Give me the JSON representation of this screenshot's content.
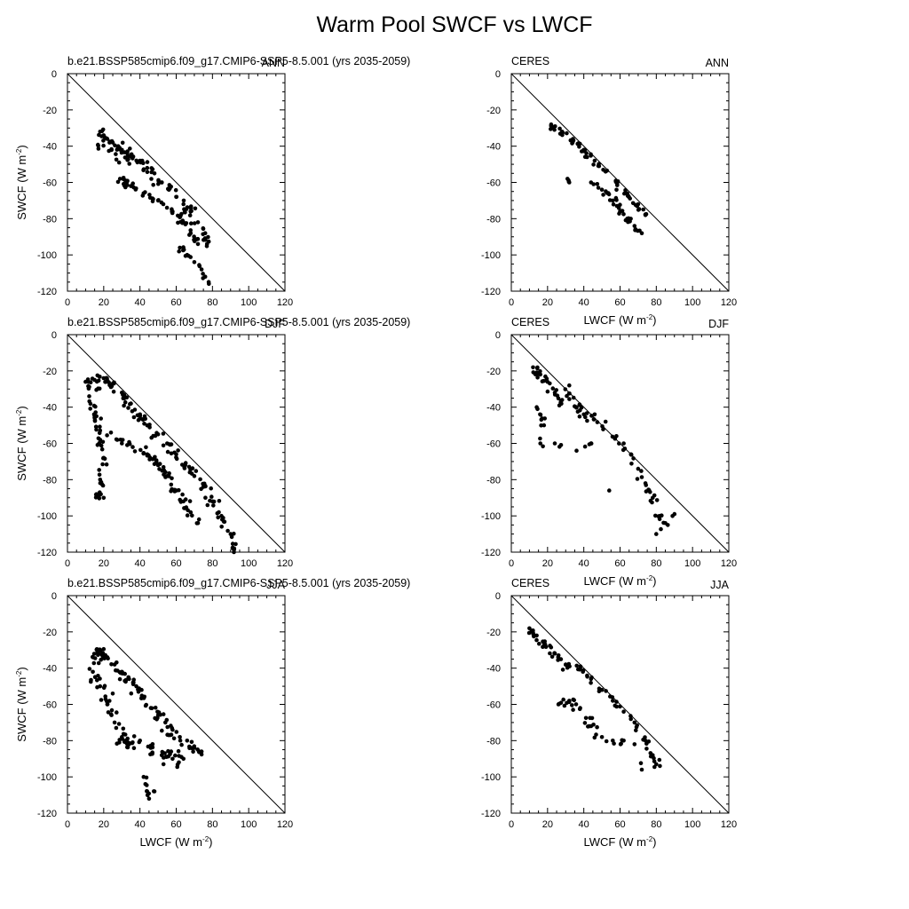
{
  "title": "Warm Pool SWCF vs LWCF",
  "axes": {
    "xlabel_main": "LWCF (W m",
    "xlabel_sup": "-2",
    "xlabel_close": ")",
    "ylabel_main": "SWCF (W m",
    "ylabel_sup": "-2",
    "ylabel_close": ")",
    "xlim": [
      0,
      120
    ],
    "ylim": [
      -120,
      0
    ],
    "xticks": [
      0,
      20,
      40,
      60,
      80,
      100,
      120
    ],
    "yticks": [
      0,
      -20,
      -40,
      -60,
      -80,
      -100,
      -120
    ]
  },
  "chart_data": [
    {
      "type": "scatter",
      "panel": "model-ann",
      "left_label": "b.e21.BSSP585cmip6.f09_g17.CMIP6-SSP5-8.5.001 (yrs 2035-2059)",
      "right_label": "ANN",
      "xlabel": "",
      "ylabel": "SWCF (W m-2)",
      "xlim": [
        0,
        120
      ],
      "ylim": [
        -120,
        0
      ],
      "reference_line": "1:-1",
      "clusters": [
        {
          "pts": [
            [
              18,
              -32
            ],
            [
              20,
              -34
            ],
            [
              22,
              -36
            ],
            [
              25,
              -38
            ],
            [
              28,
              -40
            ],
            [
              30,
              -42
            ],
            [
              33,
              -44
            ],
            [
              36,
              -46
            ],
            [
              40,
              -48
            ],
            [
              44,
              -52
            ],
            [
              48,
              -55
            ],
            [
              52,
              -60
            ],
            [
              56,
              -64
            ],
            [
              60,
              -68
            ],
            [
              64,
              -72
            ],
            [
              68,
              -76
            ],
            [
              72,
              -82
            ],
            [
              76,
              -88
            ],
            [
              77,
              -94
            ]
          ],
          "n": 90,
          "spread": 4.5,
          "offset": -6
        },
        {
          "pts": [
            [
              29,
              -58
            ],
            [
              35,
              -62
            ],
            [
              42,
              -66
            ],
            [
              50,
              -70
            ],
            [
              58,
              -76
            ],
            [
              64,
              -82
            ],
            [
              68,
              -88
            ],
            [
              72,
              -94
            ]
          ],
          "n": 45,
          "spread": 3.5,
          "offset": 0
        },
        {
          "pts": [
            [
              62,
              -96
            ],
            [
              66,
              -100
            ],
            [
              70,
              -104
            ],
            [
              74,
              -108
            ],
            [
              76,
              -112
            ],
            [
              78,
              -116
            ]
          ],
          "n": 12,
          "spread": 2.5,
          "offset": 0
        }
      ]
    },
    {
      "type": "scatter",
      "panel": "obs-ann",
      "left_label": "CERES",
      "right_label": "ANN",
      "xlabel": "LWCF (W m-2)",
      "ylabel": "",
      "xlim": [
        0,
        120
      ],
      "ylim": [
        -120,
        0
      ],
      "reference_line": "1:-1",
      "clusters": [
        {
          "pts": [
            [
              22,
              -28
            ],
            [
              28,
              -32
            ],
            [
              34,
              -36
            ],
            [
              40,
              -42
            ],
            [
              46,
              -48
            ],
            [
              52,
              -54
            ],
            [
              58,
              -60
            ],
            [
              64,
              -66
            ],
            [
              70,
              -72
            ],
            [
              74,
              -78
            ]
          ],
          "n": 55,
          "spread": 3.2,
          "offset": -2
        },
        {
          "pts": [
            [
              44,
              -60
            ],
            [
              50,
              -64
            ],
            [
              56,
              -70
            ],
            [
              60,
              -76
            ],
            [
              64,
              -80
            ],
            [
              68,
              -84
            ],
            [
              72,
              -88
            ]
          ],
          "n": 30,
          "spread": 3.5,
          "offset": 0
        },
        {
          "pts": [
            [
              31,
              -58
            ],
            [
              32,
              -60
            ]
          ],
          "n": 2,
          "spread": 0.8,
          "offset": 0
        }
      ]
    },
    {
      "type": "scatter",
      "panel": "model-djf",
      "left_label": "b.e21.BSSP585cmip6.f09_g17.CMIP6-SSP5-8.5.001 (yrs 2035-2059)",
      "right_label": "DJF",
      "xlabel": "",
      "ylabel": "SWCF (W m-2)",
      "xlim": [
        0,
        120
      ],
      "ylim": [
        -120,
        0
      ],
      "reference_line": "1:-1",
      "clusters": [
        {
          "pts": [
            [
              10,
              -26
            ],
            [
              15,
              -25
            ],
            [
              20,
              -24
            ],
            [
              25,
              -27
            ],
            [
              30,
              -32
            ],
            [
              35,
              -38
            ],
            [
              40,
              -44
            ],
            [
              45,
              -50
            ],
            [
              50,
              -55
            ],
            [
              55,
              -60
            ],
            [
              60,
              -66
            ],
            [
              65,
              -72
            ],
            [
              70,
              -78
            ],
            [
              75,
              -84
            ],
            [
              80,
              -92
            ],
            [
              85,
              -100
            ],
            [
              90,
              -110
            ],
            [
              92,
              -118
            ]
          ],
          "n": 110,
          "spread": 4,
          "offset": -5
        },
        {
          "pts": [
            [
              12,
              -34
            ],
            [
              16,
              -45
            ],
            [
              18,
              -58
            ],
            [
              20,
              -68
            ],
            [
              18,
              -80
            ],
            [
              16,
              -88
            ],
            [
              20,
              -90
            ]
          ],
          "n": 40,
          "spread": 3.5,
          "offset": 0
        },
        {
          "pts": [
            [
              24,
              -54
            ],
            [
              30,
              -60
            ],
            [
              36,
              -62
            ],
            [
              44,
              -66
            ],
            [
              50,
              -72
            ],
            [
              55,
              -78
            ],
            [
              60,
              -86
            ],
            [
              64,
              -92
            ],
            [
              68,
              -98
            ],
            [
              72,
              -104
            ]
          ],
          "n": 55,
          "spread": 4,
          "offset": 0
        }
      ]
    },
    {
      "type": "scatter",
      "panel": "obs-djf",
      "left_label": "CERES",
      "right_label": "DJF",
      "xlabel": "LWCF (W m-2)",
      "ylabel": "",
      "xlim": [
        0,
        120
      ],
      "ylim": [
        -120,
        0
      ],
      "reference_line": "1:-1",
      "clusters": [
        {
          "pts": [
            [
              12,
              -18
            ],
            [
              16,
              -22
            ],
            [
              20,
              -26
            ],
            [
              24,
              -32
            ],
            [
              28,
              -36
            ],
            [
              32,
              -28
            ],
            [
              36,
              -40
            ],
            [
              40,
              -44
            ],
            [
              46,
              -44
            ],
            [
              52,
              -48
            ],
            [
              58,
              -56
            ],
            [
              62,
              -60
            ],
            [
              66,
              -66
            ],
            [
              70,
              -74
            ],
            [
              74,
              -82
            ],
            [
              78,
              -90
            ],
            [
              82,
              -100
            ],
            [
              85,
              -104
            ]
          ],
          "n": 75,
          "spread": 3.5,
          "offset": -3
        },
        {
          "pts": [
            [
              14,
              -40
            ],
            [
              18,
              -50
            ],
            [
              16,
              -60
            ],
            [
              24,
              -60
            ],
            [
              36,
              -64
            ],
            [
              44,
              -60
            ],
            [
              54,
              -86
            ]
          ],
          "n": 14,
          "spread": 3,
          "offset": 0
        },
        {
          "pts": [
            [
              80,
              -110
            ],
            [
              90,
              -99
            ]
          ],
          "n": 2,
          "spread": 0.8,
          "offset": 0
        }
      ]
    },
    {
      "type": "scatter",
      "panel": "model-jja",
      "left_label": "b.e21.BSSP585cmip6.f09_g17.CMIP6-SSP5-8.5.001 (yrs 2035-2059)",
      "right_label": "JJA",
      "xlabel": "LWCF (W m-2)",
      "ylabel": "SWCF (W m-2)",
      "xlim": [
        0,
        120
      ],
      "ylim": [
        -120,
        0
      ],
      "reference_line": "1:-1",
      "clusters": [
        {
          "pts": [
            [
              14,
              -34
            ],
            [
              18,
              -30
            ],
            [
              22,
              -34
            ],
            [
              26,
              -38
            ],
            [
              30,
              -42
            ],
            [
              34,
              -46
            ],
            [
              38,
              -50
            ],
            [
              42,
              -56
            ],
            [
              46,
              -62
            ],
            [
              50,
              -66
            ],
            [
              54,
              -70
            ],
            [
              58,
              -74
            ],
            [
              62,
              -78
            ],
            [
              66,
              -80
            ],
            [
              70,
              -84
            ],
            [
              74,
              -86
            ]
          ],
          "n": 85,
          "spread": 4,
          "offset": -4
        },
        {
          "pts": [
            [
              14,
              -42
            ],
            [
              18,
              -50
            ],
            [
              22,
              -60
            ],
            [
              26,
              -70
            ],
            [
              30,
              -78
            ],
            [
              34,
              -82
            ],
            [
              40,
              -80
            ],
            [
              46,
              -84
            ],
            [
              52,
              -88
            ],
            [
              58,
              -90
            ],
            [
              64,
              -90
            ]
          ],
          "n": 70,
          "spread": 6,
          "offset": 0
        },
        {
          "pts": [
            [
              43,
              -104
            ],
            [
              44,
              -108
            ],
            [
              45,
              -112
            ],
            [
              48,
              -108
            ],
            [
              42,
              -100
            ]
          ],
          "n": 6,
          "spread": 1.5,
          "offset": 0
        }
      ]
    },
    {
      "type": "scatter",
      "panel": "obs-jja",
      "left_label": "CERES",
      "right_label": "JJA",
      "xlabel": "LWCF (W m-2)",
      "ylabel": "",
      "xlim": [
        0,
        120
      ],
      "ylim": [
        -120,
        0
      ],
      "reference_line": "1:-1",
      "clusters": [
        {
          "pts": [
            [
              10,
              -18
            ],
            [
              14,
              -22
            ],
            [
              18,
              -26
            ],
            [
              24,
              -32
            ],
            [
              30,
              -38
            ],
            [
              38,
              -40
            ],
            [
              44,
              -46
            ],
            [
              50,
              -52
            ],
            [
              56,
              -58
            ],
            [
              62,
              -64
            ],
            [
              68,
              -70
            ],
            [
              74,
              -80
            ],
            [
              78,
              -88
            ],
            [
              82,
              -94
            ]
          ],
          "n": 70,
          "spread": 3.2,
          "offset": -2
        },
        {
          "pts": [
            [
              26,
              -60
            ],
            [
              32,
              -58
            ],
            [
              38,
              -62
            ],
            [
              44,
              -72
            ],
            [
              50,
              -78
            ],
            [
              56,
              -80
            ],
            [
              62,
              -80
            ],
            [
              68,
              -82
            ],
            [
              72,
              -96
            ]
          ],
          "n": 28,
          "spread": 3.5,
          "offset": 0
        }
      ]
    }
  ]
}
